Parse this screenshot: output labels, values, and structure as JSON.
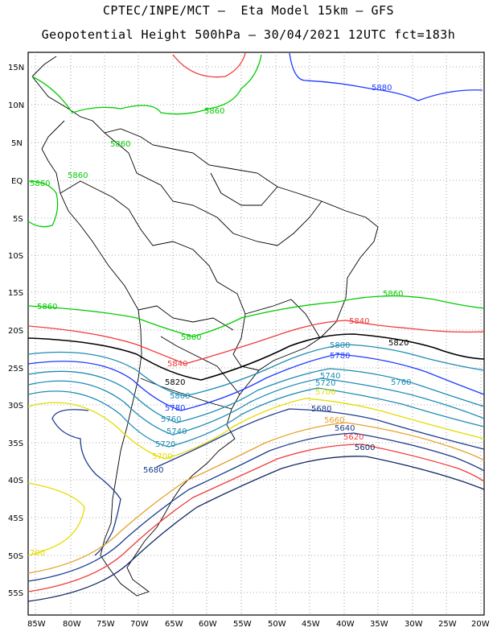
{
  "title_line1": "CPTEC/INPE/MCT –  Eta Model 15km – GFS",
  "title_line2": "Geopotential Height 500hPa – 30/04/2021 12UTC fct=183h",
  "lat_labels": [
    "15N",
    "10N",
    "5N",
    "EQ",
    "5S",
    "10S",
    "15S",
    "20S",
    "25S",
    "30S",
    "35S",
    "40S",
    "45S",
    "50S",
    "55S"
  ],
  "lon_labels": [
    "85W",
    "80W",
    "75W",
    "70W",
    "65W",
    "60W",
    "55W",
    "50W",
    "45W",
    "40W",
    "35W",
    "30W",
    "25W",
    "20W"
  ],
  "contour_labels": [
    {
      "text": "5880",
      "color": "#1e3cff"
    },
    {
      "text": "5860",
      "color": "#00cc00"
    },
    {
      "text": "5860",
      "color": "#00cc00"
    },
    {
      "text": "5860",
      "color": "#00cc00"
    },
    {
      "text": "5860",
      "color": "#00cc00"
    },
    {
      "text": "5860",
      "color": "#00cc00"
    },
    {
      "text": "5860",
      "color": "#00cc00"
    },
    {
      "text": "5860",
      "color": "#00cc00"
    },
    {
      "text": "5840",
      "color": "#f03c3c"
    },
    {
      "text": "5840",
      "color": "#f03c3c"
    },
    {
      "text": "5820",
      "color": "#000000"
    },
    {
      "text": "5820",
      "color": "#000000"
    },
    {
      "text": "5800",
      "color": "#1e8cb4"
    },
    {
      "text": "5800",
      "color": "#1e8cb4"
    },
    {
      "text": "5780",
      "color": "#1e3cff"
    },
    {
      "text": "5780",
      "color": "#1e3cff"
    },
    {
      "text": "5760",
      "color": "#1e8cb4"
    },
    {
      "text": "5760",
      "color": "#1e8cb4"
    },
    {
      "text": "5740",
      "color": "#1e8cb4"
    },
    {
      "text": "5740",
      "color": "#1e8cb4"
    },
    {
      "text": "5720",
      "color": "#1e8cb4"
    },
    {
      "text": "5720",
      "color": "#1e8cb4"
    },
    {
      "text": "5700",
      "color": "#e6dc00"
    },
    {
      "text": "5700",
      "color": "#e6dc00"
    },
    {
      "text": "5680",
      "color": "#1e3c8c"
    },
    {
      "text": "5680",
      "color": "#1e3c8c"
    },
    {
      "text": "5660",
      "color": "#e6a028"
    },
    {
      "text": "5640",
      "color": "#1e3c8c"
    },
    {
      "text": "5620",
      "color": "#f03c3c"
    },
    {
      "text": "5600",
      "color": "#142864"
    },
    {
      "text": "700",
      "color": "#e6dc00"
    }
  ]
}
